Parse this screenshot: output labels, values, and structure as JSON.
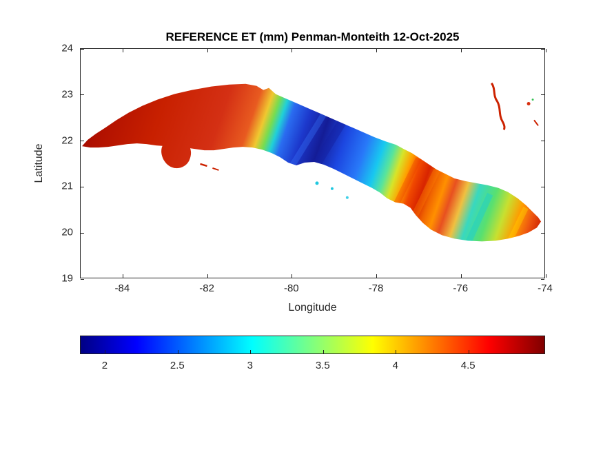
{
  "figure": {
    "background": "#ffffff",
    "axis_color": "#202020",
    "text_color": "#262626"
  },
  "chart_data": {
    "type": "heatmap",
    "title": "REFERENCE ET (mm) Penman-Monteith 12-Oct-2025",
    "variable": "Reference evapotranspiration (Penman-Monteith)",
    "units": "mm",
    "date": "12-Oct-2025",
    "region": "Cuba and nearby cays",
    "xlabel": "Longitude",
    "ylabel": "Latitude",
    "xlim": [
      -85,
      -74
    ],
    "ylim": [
      19,
      24
    ],
    "x_ticks": [
      -84,
      -82,
      -80,
      -78,
      -76,
      -74
    ],
    "y_ticks": [
      24,
      23,
      22,
      21,
      20,
      19
    ],
    "grid": false,
    "legend": "none",
    "colorbar": {
      "orientation": "horizontal",
      "position": "below plot",
      "colormap": "jet",
      "range": [
        1.83,
        5.03
      ],
      "ticks": [
        2,
        2.5,
        3,
        3.5,
        4,
        4.5
      ],
      "colors": [
        {
          "hex": "#000084",
          "pos": 0
        },
        {
          "hex": "#0000ff",
          "pos": 12
        },
        {
          "hex": "#00ffff",
          "pos": 37
        },
        {
          "hex": "#ffff00",
          "pos": 63
        },
        {
          "hex": "#ff0000",
          "pos": 88
        },
        {
          "hex": "#800000",
          "pos": 100
        }
      ]
    },
    "values_by_region": [
      {
        "area": "Western Cuba (lon -85 to -80.7, Pinar del Rio to Matanzas)",
        "et_mm": "4.5-5.0",
        "color": "dark red"
      },
      {
        "area": "Isla de la Juventud (lon ~-82.9, lat ~21.6)",
        "et_mm": "4.5-5.0",
        "color": "red"
      },
      {
        "area": "Central Cuba (lon -80.6 to -78.5)",
        "et_mm": "1.9-2.6",
        "color": "dark blue / blue diagonal band"
      },
      {
        "area": "Camaguey area (lon -78.5 to -77.8)",
        "et_mm": "2.7-3.3",
        "color": "cyan"
      },
      {
        "area": "Las Tunas / Holguin (lon -77.8 to -76.4)",
        "et_mm": "4.0-5.0",
        "color": "orange-red diagonal bands"
      },
      {
        "area": "Eastern Cuba (lon -76.4 to -74.1)",
        "et_mm": "2.8-4.3",
        "color": "mixed cyan, green, yellow, orange stripes"
      },
      {
        "area": "Small cays north-east of eastern Cuba (lon ~-74.3, lat 22.4-23.2)",
        "et_mm": "4.5-5.0",
        "color": "red"
      }
    ]
  }
}
